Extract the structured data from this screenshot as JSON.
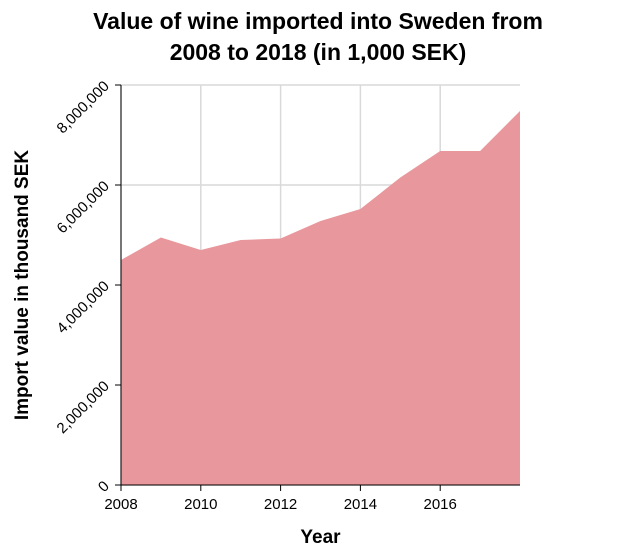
{
  "chart_data": {
    "type": "area",
    "title_lines": [
      "Value of wine imported into Sweden from",
      "2008 to 2018 (in 1,000 SEK)"
    ],
    "xlabel": "Year",
    "ylabel": "Import value in thousand SEK",
    "xlim": [
      2008,
      2018
    ],
    "ylim": [
      0,
      8000000
    ],
    "x_ticks": [
      {
        "value": 2008,
        "label": "2008"
      },
      {
        "value": 2010,
        "label": "2010"
      },
      {
        "value": 2012,
        "label": "2012"
      },
      {
        "value": 2014,
        "label": "2014"
      },
      {
        "value": 2016,
        "label": "2016"
      }
    ],
    "y_ticks": [
      {
        "value": 0,
        "label": "0"
      },
      {
        "value": 2000000,
        "label": "2,000,000"
      },
      {
        "value": 4000000,
        "label": "4,000,000"
      },
      {
        "value": 6000000,
        "label": "6,000,000"
      },
      {
        "value": 8000000,
        "label": "8,000,000"
      }
    ],
    "x": [
      2008,
      2009,
      2010,
      2011,
      2012,
      2013,
      2014,
      2015,
      2016,
      2017,
      2018
    ],
    "series": [
      {
        "values": [
          4500000,
          4950000,
          4700000,
          4900000,
          4930000,
          5280000,
          5520000,
          6150000,
          6680000,
          6680000,
          7480000
        ]
      }
    ],
    "grid": true,
    "legend": "none",
    "colors": {
      "area": "#e8979c",
      "grid": "#d9d9d9",
      "plot_background": "#ffffff"
    }
  }
}
